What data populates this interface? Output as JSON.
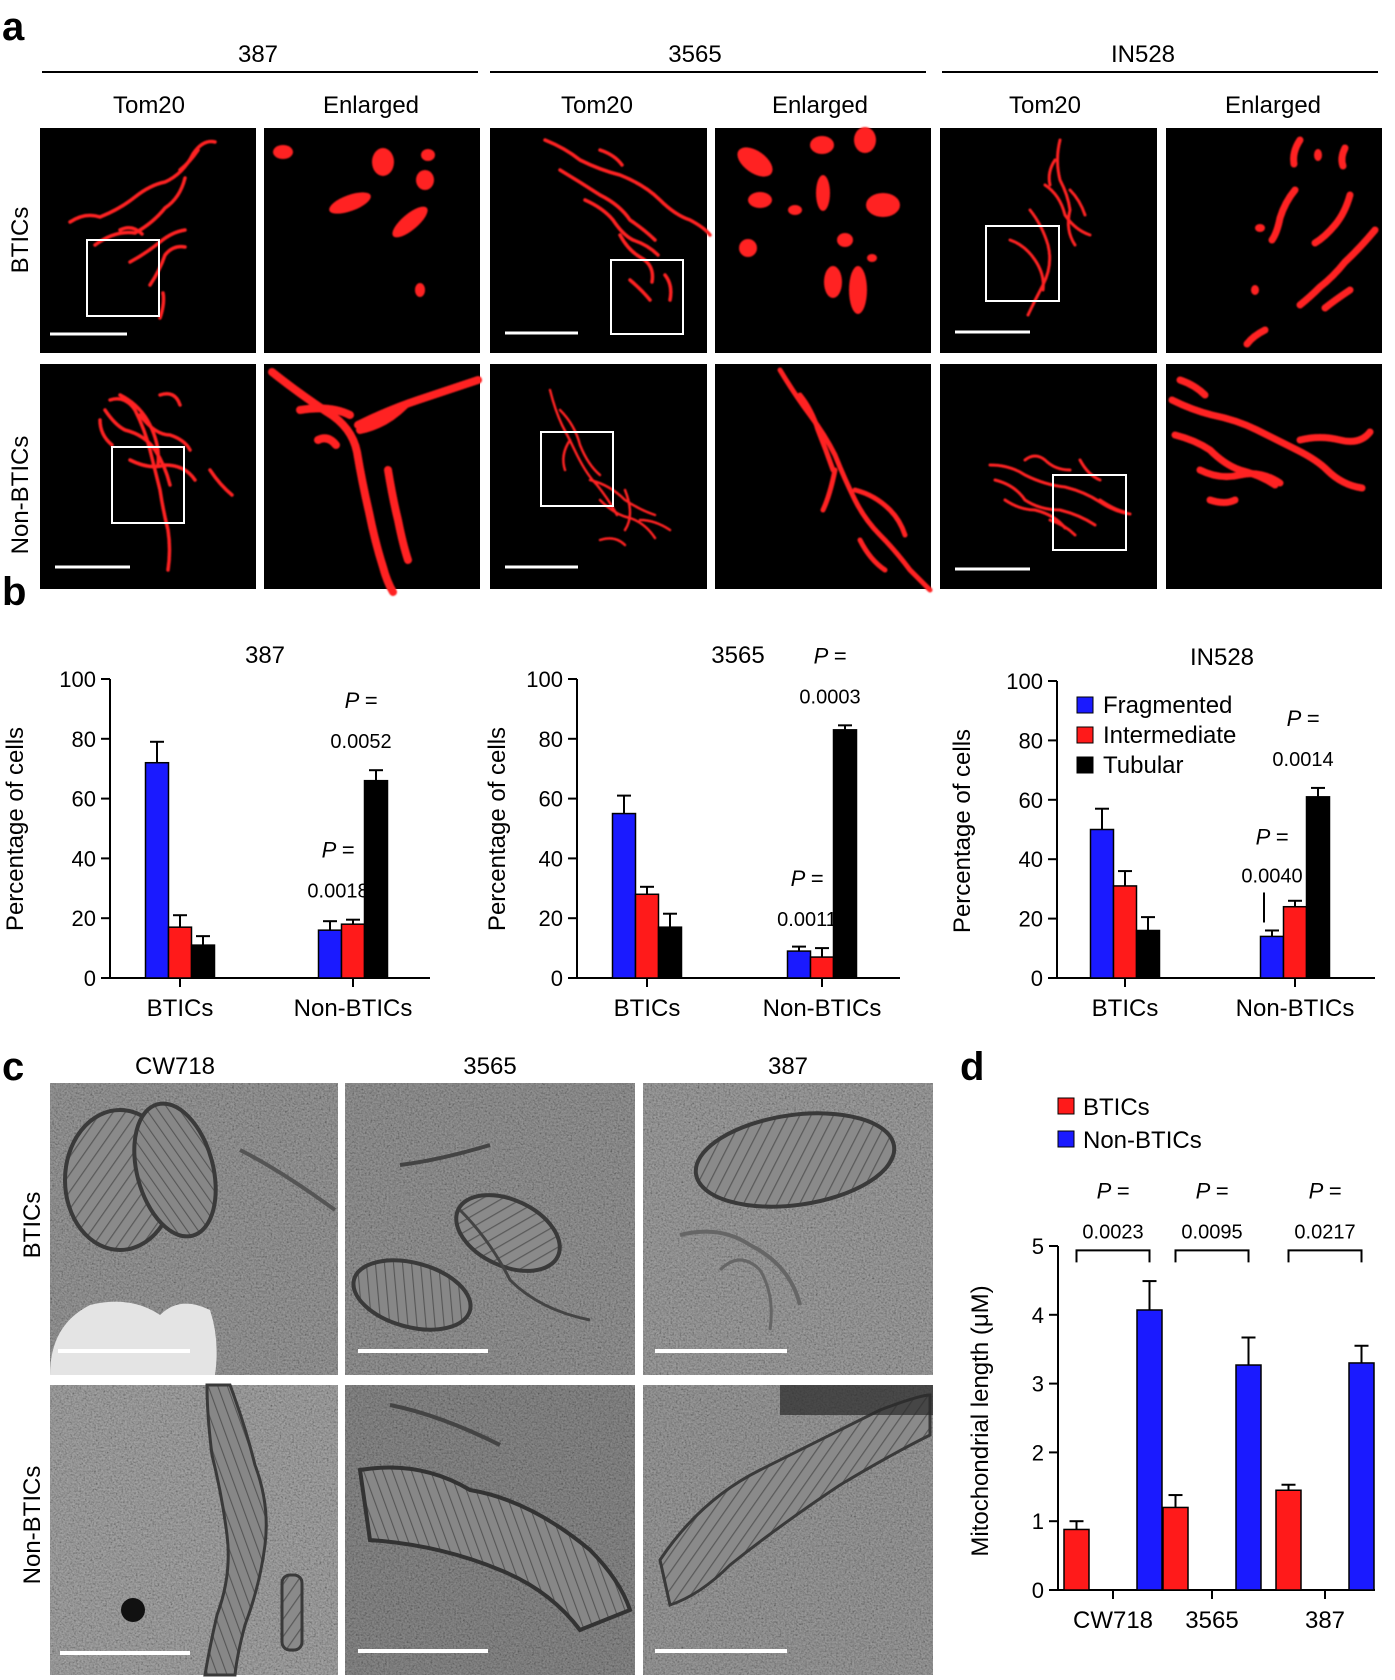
{
  "panel_labels": {
    "a": "a",
    "b": "b",
    "c": "c",
    "d": "d"
  },
  "panel_a": {
    "groups": [
      "387",
      "3565",
      "IN528"
    ],
    "column_headers": [
      "Tom20",
      "Enlarged",
      "Tom20",
      "Enlarged",
      "Tom20",
      "Enlarged"
    ],
    "row_labels": [
      "BTICs",
      "Non-BTICs"
    ],
    "stain_color": "#ff2020"
  },
  "panel_c": {
    "column_headers": [
      "CW718",
      "3565",
      "387"
    ],
    "row_labels": [
      "BTICs",
      "Non-BTICs"
    ]
  },
  "chart_data": [
    {
      "type": "bar",
      "title": "387",
      "ylabel": "Percentage of cells",
      "ylim": [
        0,
        100
      ],
      "yticks": [
        "0",
        "20",
        "40",
        "60",
        "80",
        "100"
      ],
      "categories": [
        "BTICs",
        "Non-BTICs"
      ],
      "series": [
        {
          "name": "Fragmented",
          "color": "#1a1aff",
          "values": [
            72,
            16
          ],
          "errors": [
            7,
            3
          ]
        },
        {
          "name": "Intermediate",
          "color": "#ff1a1a",
          "values": [
            17,
            18
          ],
          "errors": [
            4,
            1.5
          ]
        },
        {
          "name": "Tubular",
          "color": "#000000",
          "values": [
            11,
            66
          ],
          "errors": [
            3,
            3.5
          ]
        }
      ],
      "annotations": [
        {
          "category": 1,
          "series": 1,
          "p_label": "P =",
          "p_value": "0.0018"
        },
        {
          "category": 1,
          "series": 2,
          "p_label": "P =",
          "p_value": "0.0052"
        }
      ]
    },
    {
      "type": "bar",
      "title": "3565",
      "ylabel": "Percentage of cells",
      "ylim": [
        0,
        100
      ],
      "yticks": [
        "0",
        "20",
        "40",
        "60",
        "80",
        "100"
      ],
      "categories": [
        "BTICs",
        "Non-BTICs"
      ],
      "series": [
        {
          "name": "Fragmented",
          "color": "#1a1aff",
          "values": [
            55,
            9
          ],
          "errors": [
            6,
            1.5
          ]
        },
        {
          "name": "Intermediate",
          "color": "#ff1a1a",
          "values": [
            28,
            7
          ],
          "errors": [
            2.5,
            3
          ]
        },
        {
          "name": "Tubular",
          "color": "#000000",
          "values": [
            17,
            83
          ],
          "errors": [
            4.5,
            1.5
          ]
        }
      ],
      "annotations": [
        {
          "category": 1,
          "series": 1,
          "p_label": "P =",
          "p_value": "0.0011"
        },
        {
          "category": 1,
          "series": 2,
          "p_label": "P =",
          "p_value": "0.0003"
        }
      ]
    },
    {
      "type": "bar",
      "title": "IN528",
      "ylabel": "Percentage of cells",
      "ylim": [
        0,
        100
      ],
      "yticks": [
        "0",
        "20",
        "40",
        "60",
        "80",
        "100"
      ],
      "categories": [
        "BTICs",
        "Non-BTICs"
      ],
      "legend": [
        "Fragmented",
        "Intermediate",
        "Tubular"
      ],
      "series": [
        {
          "name": "Fragmented",
          "color": "#1a1aff",
          "values": [
            50,
            14
          ],
          "errors": [
            7,
            2
          ]
        },
        {
          "name": "Intermediate",
          "color": "#ff1a1a",
          "values": [
            31,
            24
          ],
          "errors": [
            5,
            2
          ]
        },
        {
          "name": "Tubular",
          "color": "#000000",
          "values": [
            16,
            61
          ],
          "errors": [
            4.5,
            3
          ]
        }
      ],
      "annotations": [
        {
          "category": 1,
          "series": 0,
          "p_label": "P =",
          "p_value": "0.0040"
        },
        {
          "category": 1,
          "series": 2,
          "p_label": "P =",
          "p_value": "0.0014"
        }
      ]
    },
    {
      "type": "bar",
      "ylabel": "Mitochondrial length (μM)",
      "ylim": [
        0,
        5
      ],
      "yticks": [
        "0",
        "1",
        "2",
        "3",
        "4",
        "5"
      ],
      "categories": [
        "CW718",
        "3565",
        "387"
      ],
      "legend": [
        "BTICs",
        "Non-BTICs"
      ],
      "series": [
        {
          "name": "BTICs",
          "color": "#ff1a1a",
          "values": [
            0.88,
            1.2,
            1.45
          ],
          "errors": [
            0.12,
            0.18,
            0.08
          ]
        },
        {
          "name": "Non-BTICs",
          "color": "#1a1aff",
          "values": [
            4.07,
            3.27,
            3.3
          ],
          "errors": [
            0.42,
            0.4,
            0.25
          ]
        }
      ],
      "annotations": [
        {
          "category": 0,
          "p_label": "P =",
          "p_value": "0.0023"
        },
        {
          "category": 1,
          "p_label": "P =",
          "p_value": "0.0095"
        },
        {
          "category": 2,
          "p_label": "P =",
          "p_value": "0.0217"
        }
      ]
    }
  ]
}
